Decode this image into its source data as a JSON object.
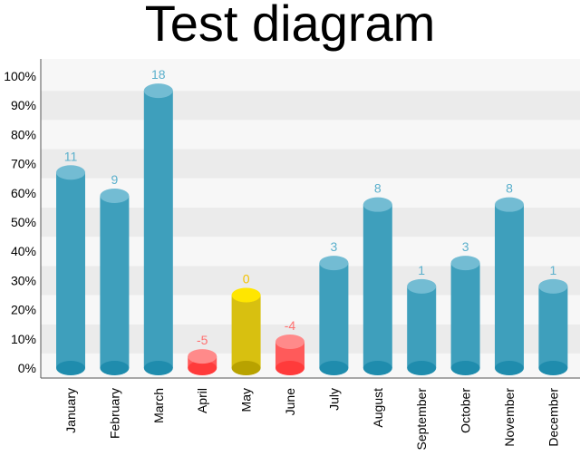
{
  "chart_data": {
    "type": "bar",
    "title": "Test diagram",
    "categories": [
      "January",
      "February",
      "March",
      "April",
      "May",
      "June",
      "July",
      "August",
      "September",
      "October",
      "November",
      "December"
    ],
    "values": [
      11,
      9,
      18,
      -5,
      0,
      -4,
      3,
      8,
      1,
      3,
      8,
      1
    ],
    "bar_levels_percent": [
      67,
      59,
      95,
      4,
      25,
      9,
      36,
      56,
      28,
      36,
      56,
      28
    ],
    "y_ticks": [
      "0%",
      "10%",
      "20%",
      "30%",
      "40%",
      "50%",
      "60%",
      "70%",
      "80%",
      "90%",
      "100%"
    ],
    "ylim": [
      0,
      100
    ],
    "xlabel": "",
    "ylabel": "",
    "grid": "banded",
    "colors": {
      "positive": "#3e9fbc",
      "positive_top": "#73bcd3",
      "positive_bottom": "#1f8cad",
      "positive_label": "#5bb0cc",
      "zero": "#d8c010",
      "zero_top": "#ffe600",
      "zero_bottom": "#b8a200",
      "zero_label": "#f2c200",
      "negative": "#ff5a5a",
      "negative_top": "#ff8a8a",
      "negative_bottom": "#ff3b3b",
      "negative_label": "#ff7070",
      "band_dark": "#ebebeb",
      "band_light": "#f7f7f7"
    }
  }
}
